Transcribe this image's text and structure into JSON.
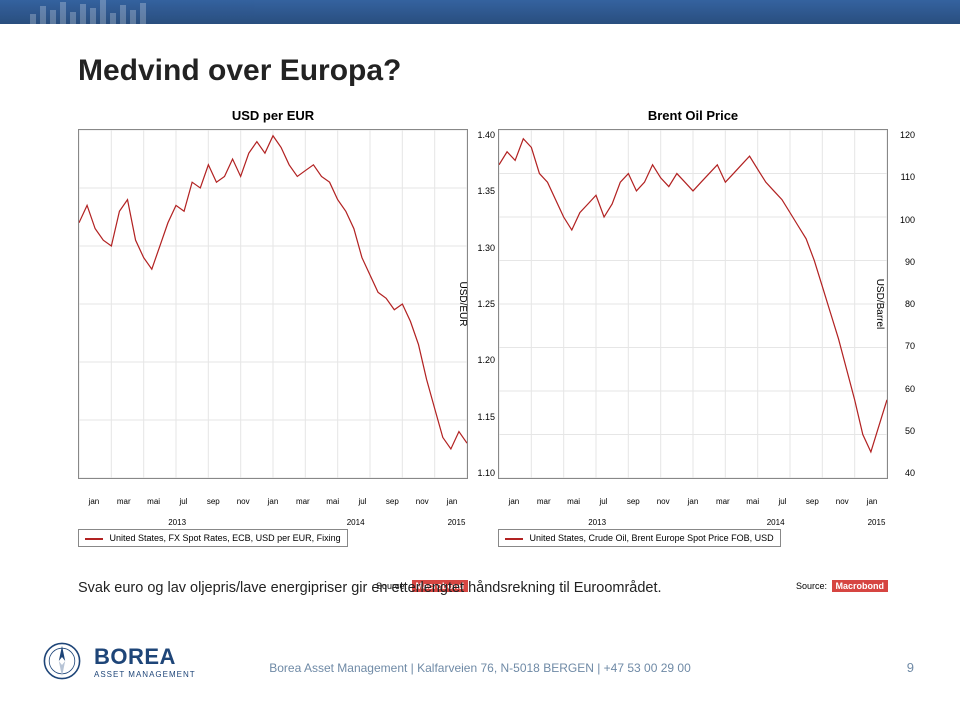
{
  "page_title": "Medvind over Europa?",
  "caption": "Svak euro og lav oljepris/lave energipriser gir en etterlengtet håndsrekning til Euroområdet.",
  "footer_text": "Borea Asset Management | Kalfarveien 76, N-5018 BERGEN | +47 53 00 29 00",
  "page_number": "9",
  "logo": {
    "brand": "BOREA",
    "sub": "ASSET MANAGEMENT"
  },
  "source_label": "Source:",
  "source_brand": "Macrobond",
  "x_months": [
    "jan",
    "mar",
    "mai",
    "jul",
    "sep",
    "nov",
    "jan",
    "mar",
    "mai",
    "jul",
    "sep",
    "nov",
    "jan"
  ],
  "x_years": [
    "2013",
    "2014",
    "2015"
  ],
  "chart_left": {
    "title": "USD per EUR",
    "type": "line",
    "y_label": "USD/EUR",
    "ylim": [
      1.1,
      1.4
    ],
    "ytick_step": 0.05,
    "y_ticks": [
      "1.40",
      "1.35",
      "1.30",
      "1.25",
      "1.20",
      "1.15",
      "1.10"
    ],
    "series_color": "#b22222",
    "grid_color": "#e6e6e6",
    "background_color": "#ffffff",
    "legend": "United States, FX Spot Rates, ECB, USD per EUR, Fixing",
    "data": [
      1.32,
      1.335,
      1.315,
      1.305,
      1.3,
      1.33,
      1.34,
      1.305,
      1.29,
      1.28,
      1.3,
      1.32,
      1.335,
      1.33,
      1.355,
      1.35,
      1.37,
      1.355,
      1.36,
      1.375,
      1.36,
      1.38,
      1.39,
      1.38,
      1.395,
      1.385,
      1.37,
      1.36,
      1.365,
      1.37,
      1.36,
      1.355,
      1.34,
      1.33,
      1.315,
      1.29,
      1.275,
      1.26,
      1.255,
      1.245,
      1.25,
      1.235,
      1.215,
      1.185,
      1.16,
      1.135,
      1.125,
      1.14,
      1.13
    ]
  },
  "chart_right": {
    "title": "Brent Oil Price",
    "type": "line",
    "y_label": "USD/Barrel",
    "ylim": [
      40,
      120
    ],
    "ytick_step": 10,
    "y_ticks": [
      "120",
      "110",
      "100",
      "90",
      "80",
      "70",
      "60",
      "50",
      "40"
    ],
    "series_color": "#b22222",
    "grid_color": "#e6e6e6",
    "background_color": "#ffffff",
    "legend": "United States, Crude Oil, Brent Europe Spot Price FOB, USD",
    "data": [
      112,
      115,
      113,
      118,
      116,
      110,
      108,
      104,
      100,
      97,
      101,
      103,
      105,
      100,
      103,
      108,
      110,
      106,
      108,
      112,
      109,
      107,
      110,
      108,
      106,
      108,
      110,
      112,
      108,
      110,
      112,
      114,
      111,
      108,
      106,
      104,
      101,
      98,
      95,
      90,
      84,
      78,
      72,
      65,
      58,
      50,
      46,
      52,
      58
    ]
  }
}
